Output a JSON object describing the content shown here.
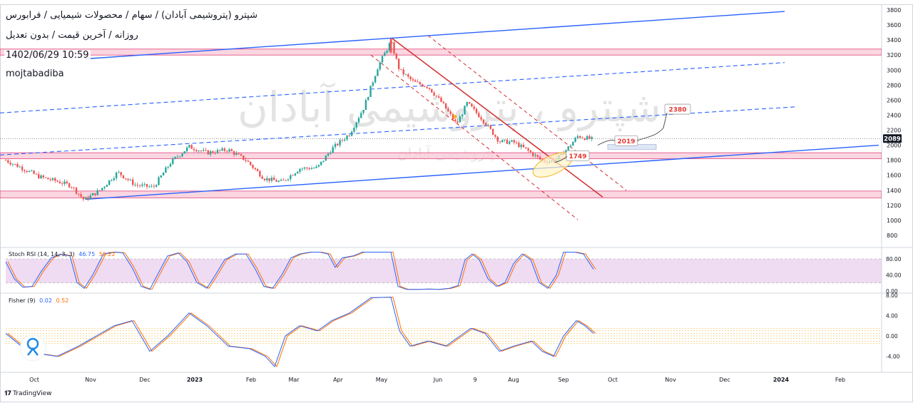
{
  "header": {
    "title": "شپترو (پتروشیمی آبادان) / سهام / محصولات شیمیایی / فرابورس",
    "subtitle": "روزانه / آخرین قیمت / بدون تعدیل",
    "datetime": "1402/06/29 10:59",
    "author": "mojtabadiba"
  },
  "watermark": {
    "big": "شپترو ، پتروشیمی آبادان",
    "small": "پتروشیمی آبادان"
  },
  "colors": {
    "up": "#26a69a",
    "down": "#ef5350",
    "zone_fill": "#f8c8d6",
    "zone_border": "#e0457b",
    "trend_blue": "#2962ff",
    "channel_red": "#d32f2f",
    "stoch_k": "#2962ff",
    "stoch_d": "#ff6d00",
    "rsi_band": "#e1bee7",
    "price_tag": "#131722"
  },
  "chart_data": {
    "type": "candlestick",
    "price_axis": {
      "ticks": [
        "3800",
        "3600",
        "3400",
        "3200",
        "3000",
        "2800",
        "2600",
        "2400",
        "2200",
        "2000",
        "1800",
        "1600",
        "1400",
        "1200",
        "1000",
        "800"
      ],
      "range": [
        700,
        3850
      ]
    },
    "time_axis": {
      "labels": [
        "Oct",
        "Nov",
        "Dec",
        "2023",
        "Feb",
        "Mar",
        "Apr",
        "May",
        "Jun",
        "9",
        "Aug",
        "Sep",
        "Oct",
        "Nov",
        "Dec",
        "2024",
        "Feb"
      ],
      "bold": [
        "2023",
        "2024"
      ]
    },
    "last_price": "2089",
    "price_series_monthly_approx": [
      {
        "label": "Oct",
        "value": 1800
      },
      {
        "label": "Nov",
        "value": 1270
      },
      {
        "label": "Dec",
        "value": 1460
      },
      {
        "label": "2023",
        "value": 1980
      },
      {
        "label": "Feb",
        "value": 1780
      },
      {
        "label": "Mar",
        "value": 1520
      },
      {
        "label": "Apr",
        "value": 2060
      },
      {
        "label": "May",
        "value": 3300
      },
      {
        "label": "Jun",
        "value": 2300
      },
      {
        "label": "9",
        "value": 2300
      },
      {
        "label": "Aug",
        "value": 2020
      },
      {
        "label": "Sep",
        "value": 1860
      },
      {
        "label": "Oct",
        "value": 2089
      }
    ],
    "zones": [
      {
        "low": 3200,
        "high": 3280
      },
      {
        "low": 1820,
        "high": 1900
      },
      {
        "low": 1300,
        "high": 1390
      }
    ],
    "annotations": [
      {
        "text": "2380"
      },
      {
        "text": "2019"
      },
      {
        "text": "1749"
      }
    ],
    "indicators": [
      {
        "name": "Stoch RSI (14, 14, 3, 3)",
        "values": [
          "46.75",
          "59.22"
        ],
        "ticks": [
          "80.00",
          "40.00",
          "0.00"
        ]
      },
      {
        "name": "Fisher (9)",
        "values": [
          "0.02",
          "0.52"
        ],
        "ticks": [
          "8.00",
          "4.00",
          "0.00",
          "-4.00"
        ]
      }
    ]
  },
  "footer": {
    "brand": "TradingView"
  }
}
